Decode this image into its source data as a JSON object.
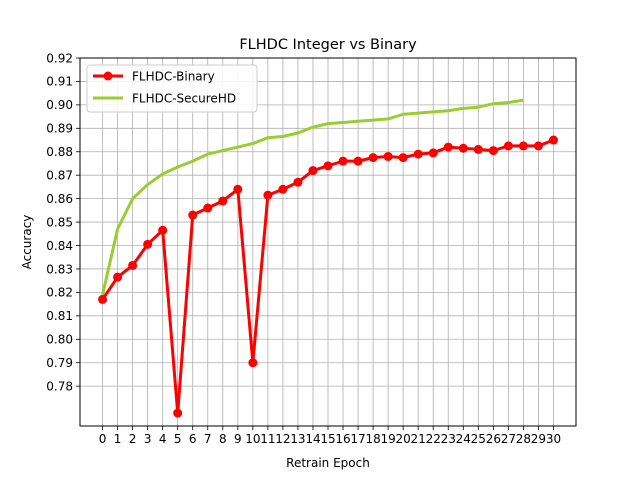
{
  "chart_data": {
    "type": "line",
    "title": "FLHDC Integer vs Binary",
    "xlabel": "Retrain Epoch",
    "ylabel": "Accuracy",
    "xlim": [
      -1.5,
      31.5
    ],
    "ylim": [
      0.763,
      0.92
    ],
    "x_ticks": [
      0,
      1,
      2,
      3,
      4,
      5,
      6,
      7,
      8,
      9,
      10,
      11,
      12,
      13,
      14,
      15,
      16,
      17,
      18,
      19,
      20,
      21,
      22,
      23,
      24,
      25,
      26,
      27,
      28,
      29,
      30
    ],
    "y_ticks": [
      0.78,
      0.79,
      0.8,
      0.81,
      0.82,
      0.83,
      0.84,
      0.85,
      0.86,
      0.87,
      0.88,
      0.89,
      0.9,
      0.91,
      0.92
    ],
    "y_tick_labels": [
      "0.78",
      "0.79",
      "0.80",
      "0.81",
      "0.82",
      "0.83",
      "0.84",
      "0.85",
      "0.86",
      "0.87",
      "0.88",
      "0.89",
      "0.90",
      "0.91",
      "0.92"
    ],
    "grid": true,
    "legend_position": "top-left",
    "series": [
      {
        "name": "FLHDC-Binary",
        "color": "#ff0000",
        "marker": "circle",
        "x": [
          0,
          1,
          2,
          3,
          4,
          5,
          6,
          7,
          8,
          9,
          10,
          11,
          12,
          13,
          14,
          15,
          16,
          17,
          18,
          19,
          20,
          21,
          22,
          23,
          24,
          25,
          26,
          27,
          28,
          29,
          30
        ],
        "values": [
          0.817,
          0.8265,
          0.8315,
          0.8405,
          0.8465,
          0.7685,
          0.853,
          0.856,
          0.859,
          0.864,
          0.79,
          0.8615,
          0.864,
          0.867,
          0.872,
          0.874,
          0.876,
          0.876,
          0.8775,
          0.878,
          0.8775,
          0.879,
          0.8795,
          0.882,
          0.8815,
          0.881,
          0.8805,
          0.8825,
          0.8825,
          0.8825,
          0.885
        ]
      },
      {
        "name": "FLHDC-SecureHD",
        "color": "#9acd32",
        "marker": "none",
        "x": [
          0,
          1,
          2,
          3,
          4,
          5,
          6,
          7,
          8,
          9,
          10,
          11,
          12,
          13,
          14,
          15,
          16,
          17,
          18,
          19,
          20,
          21,
          22,
          23,
          24,
          25,
          26,
          27,
          28
        ],
        "values": [
          0.819,
          0.847,
          0.86,
          0.866,
          0.8705,
          0.8735,
          0.876,
          0.879,
          0.8805,
          0.882,
          0.8835,
          0.886,
          0.8865,
          0.888,
          0.8905,
          0.892,
          0.8925,
          0.893,
          0.8935,
          0.894,
          0.896,
          0.8965,
          0.897,
          0.8975,
          0.8985,
          0.899,
          0.9005,
          0.901,
          0.902
        ]
      }
    ]
  }
}
